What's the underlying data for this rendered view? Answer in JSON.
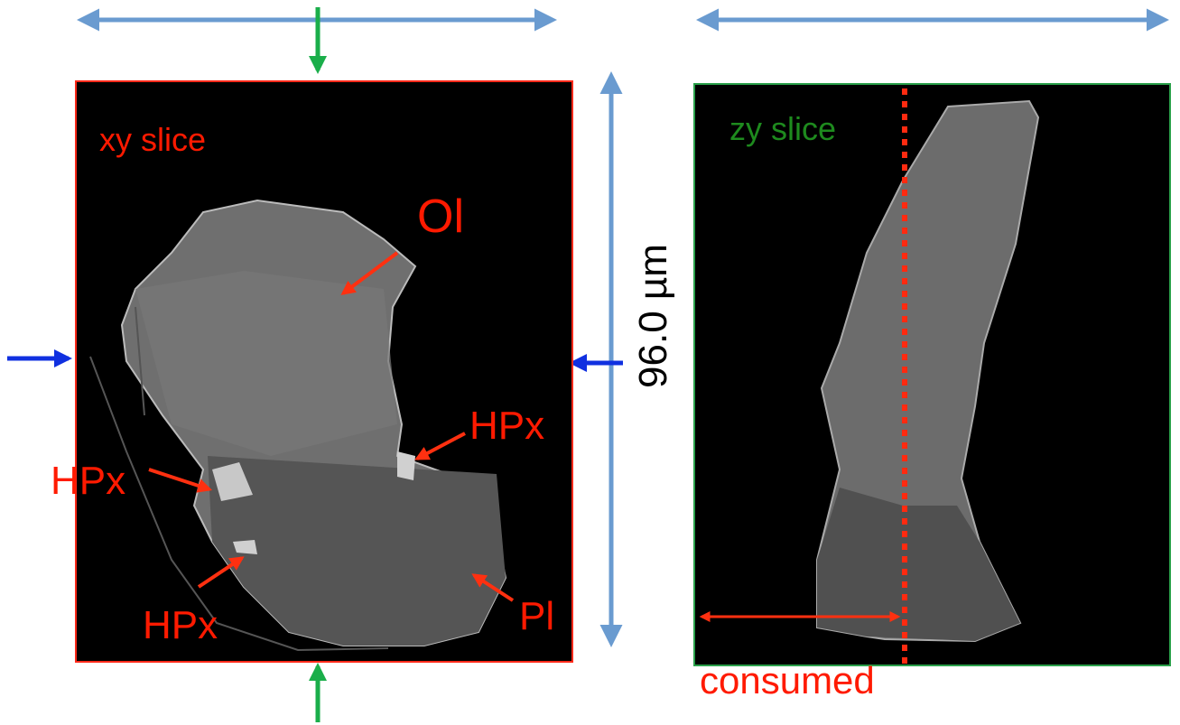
{
  "xy_slice": {
    "label": "xy slice",
    "minerals": [
      "Ol",
      "HPx",
      "HPx",
      "HPx",
      "Pl"
    ]
  },
  "scale_label": "96.0 µm",
  "zy_slice": {
    "label": "zy slice",
    "note": "consumed"
  }
}
